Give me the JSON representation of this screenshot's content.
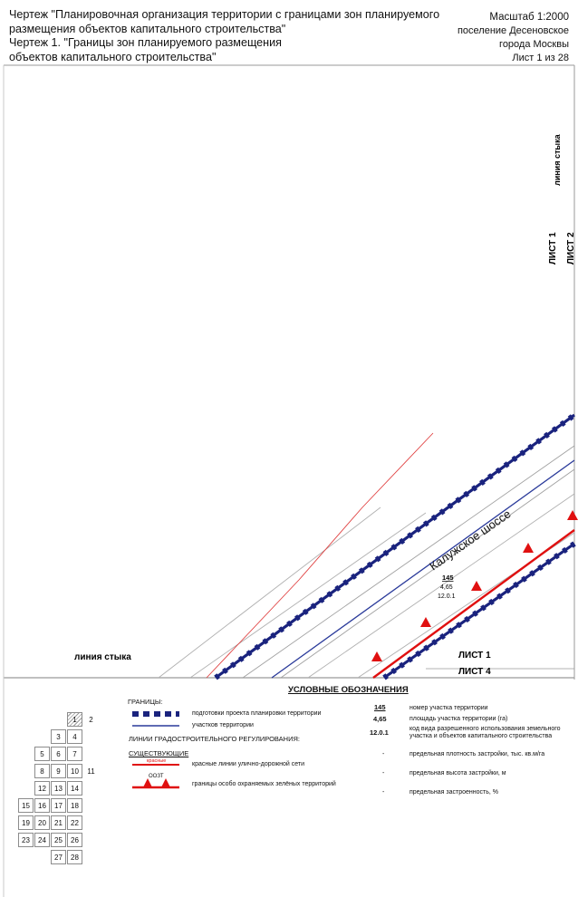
{
  "header": {
    "title_lines": [
      "Чертеж \"Планировочная организация территории с границами зон планируемого",
      "размещения объектов капитального строительства\"",
      "Чертеж 1. \"Границы зон планируемого размещения",
      "объектов капитального строительства\""
    ],
    "scale": "Масштаб 1:2000",
    "place_lines": [
      "поселение Десеновское",
      "города Москвы"
    ],
    "sheet": "Лист 1 из 28"
  },
  "map": {
    "road_name": "Калужское шоссе",
    "junction_label_bottom": "линия стыка",
    "junction_label_right": "линия стыка",
    "sheet_labels": {
      "right_1": "ЛИСТ 1",
      "right_2": "ЛИСТ 2",
      "bottom_1": "ЛИСТ 1",
      "bottom_4": "ЛИСТ 4"
    },
    "parcel": {
      "number": "145",
      "area": "4,65",
      "use_code": "12.0.1"
    },
    "colors": {
      "boundary_blue": "#1a237e",
      "red_line": "#e01010",
      "thin_line": "#8a8a8a"
    }
  },
  "legend": {
    "title": "УСЛОВНЫЕ ОБОЗНАЧЕНИЯ",
    "boundaries_header": "ГРАНИЦЫ:",
    "boundary_project": "подготовки проекта планировки территории",
    "boundary_parcels": "участков территории",
    "reg_lines_header": "ЛИНИИ ГРАДОСТРОИТЕЛЬНОГО РЕГУЛИРОВАНИЯ:",
    "existing_header": "СУЩЕСТВУЮЩИЕ",
    "red_lines_tag": "красные",
    "red_lines": "красные линии улично-дорожной сети",
    "oozt_tag": "ООЗТ",
    "oozt": "границы особо охраняемых зелёных территорий",
    "key_number": "145",
    "key_number_desc": "номер участка территории",
    "key_area": "4,65",
    "key_area_desc": "площадь участка территории (га)",
    "key_code": "12.0.1",
    "key_code_desc": "код вида разрешенного использования земельного участка и объектов капитального строительства",
    "dash": "-",
    "density_desc": "предельная плотность застройки, тыс. кв.м/га",
    "height_desc": "предельная высота застройки, м",
    "coverage_desc": "предельная застроенность, %"
  },
  "sheet_index": {
    "current": "1",
    "cells": [
      "1",
      "2",
      "3",
      "4",
      "5",
      "6",
      "7",
      "8",
      "9",
      "10",
      "11",
      "12",
      "13",
      "14",
      "15",
      "16",
      "17",
      "18",
      "19",
      "20",
      "21",
      "22",
      "23",
      "24",
      "25",
      "26",
      "27",
      "28"
    ]
  }
}
